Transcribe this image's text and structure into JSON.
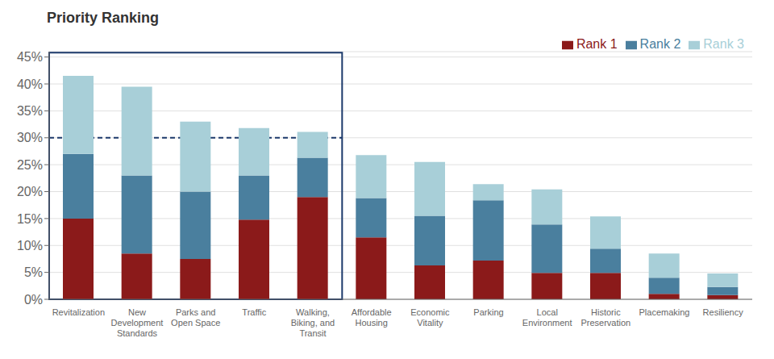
{
  "chart_data": {
    "type": "bar",
    "title": "Priority Ranking",
    "categories": [
      "Revitalization",
      "New\nDevelopment\nStandards",
      "Parks and\nOpen Space",
      "Traffic",
      "Walking,\nBiking, and\nTransit",
      "Affordable\nHousing",
      "Economic\nVitality",
      "Parking",
      "Local\nEnvironment",
      "Historic\nPreservation",
      "Placemaking",
      "Resiliency"
    ],
    "series": [
      {
        "name": "Rank 1",
        "color": "#8B1A1A",
        "values": [
          15.0,
          8.5,
          7.5,
          14.8,
          19.0,
          11.5,
          6.3,
          7.2,
          4.9,
          4.9,
          1.0,
          0.8
        ]
      },
      {
        "name": "Rank 2",
        "color": "#4A7F9E",
        "values": [
          12.0,
          14.5,
          12.5,
          8.2,
          7.3,
          7.3,
          9.2,
          11.2,
          9.0,
          4.5,
          3.0,
          1.5
        ]
      },
      {
        "name": "Rank 3",
        "color": "#A8CFD8",
        "values": [
          14.5,
          16.5,
          13.0,
          8.8,
          4.8,
          8.0,
          10.0,
          3.0,
          6.5,
          6.0,
          4.5,
          2.5
        ]
      }
    ],
    "stacked": true,
    "ylim": [
      0,
      46
    ],
    "yticks": [
      {
        "value": 0,
        "label": "0%"
      },
      {
        "value": 5,
        "label": "5%"
      },
      {
        "value": 10,
        "label": "10%"
      },
      {
        "value": 15,
        "label": "15%"
      },
      {
        "value": 20,
        "label": "20%"
      },
      {
        "value": 25,
        "label": "25%"
      },
      {
        "value": 30,
        "label": "30%"
      },
      {
        "value": 35,
        "label": "35%"
      },
      {
        "value": 40,
        "label": "40%"
      },
      {
        "value": 45,
        "label": "45%"
      }
    ],
    "grid": true,
    "legend": "upper right",
    "highlight_box": {
      "from": "Revitalization",
      "to": "Walking,\nBiking, and\nTransit",
      "ylim": [
        0,
        45.8
      ],
      "color": "#1C3A6B"
    },
    "reference_line": {
      "y": 30.0,
      "color": "#1C3A6B",
      "line_style": "dashed"
    }
  }
}
